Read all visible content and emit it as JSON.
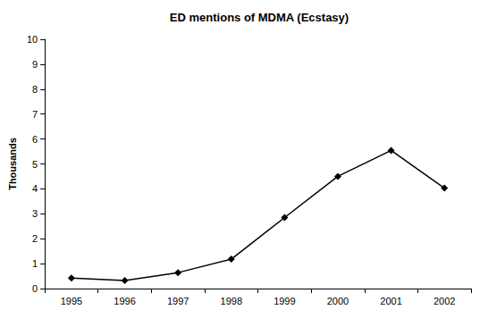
{
  "chart_data": {
    "type": "line",
    "title": "ED mentions of MDMA (Ecstasy)",
    "y_label": "Thousands",
    "categories": [
      "1995",
      "1996",
      "1997",
      "1998",
      "1999",
      "2000",
      "2001",
      "2002"
    ],
    "values": [
      0.42,
      0.32,
      0.64,
      1.18,
      2.85,
      4.5,
      5.54,
      4.03
    ],
    "color": "#000000",
    "marker": "diamond",
    "line_style": "solid",
    "ylim": [
      0,
      10
    ],
    "yticks": [
      0,
      1,
      2,
      3,
      4,
      5,
      6,
      7,
      8,
      9,
      10
    ],
    "grid": false
  }
}
